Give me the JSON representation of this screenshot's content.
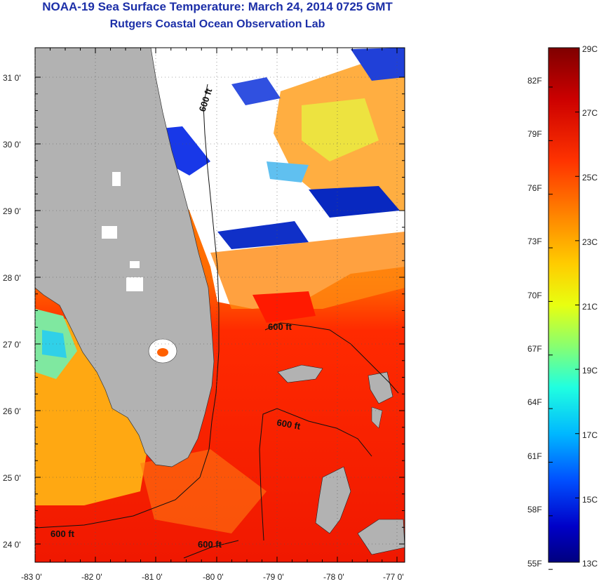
{
  "header": {
    "title": "NOAA-19 Sea Surface Temperature:  March 24, 2014 0725 GMT",
    "subtitle": "Rutgers Coastal Ocean Observation Lab"
  },
  "map": {
    "lon_ticks": [
      "-83 0'",
      "-82 0'",
      "-81 0'",
      "-80 0'",
      "-79 0'",
      "-78 0'",
      "-77 0'"
    ],
    "lat_ticks": [
      "31 0'",
      "30 0'",
      "29 0'",
      "28 0'",
      "27 0'",
      "26 0'",
      "25 0'",
      "24 0'"
    ],
    "contour_label": "600 ft",
    "land_color": "#b2b2b2",
    "cloud_color": "#ffffff"
  },
  "colorbar": {
    "celsius_labels": [
      "29C",
      "27C",
      "25C",
      "23C",
      "21C",
      "19C",
      "17C",
      "15C",
      "13C"
    ],
    "fahrenheit_labels": [
      "82F",
      "79F",
      "76F",
      "73F",
      "70F",
      "67F",
      "64F",
      "61F",
      "58F",
      "55F"
    ],
    "colors": [
      "#7f0000",
      "#cc0000",
      "#ff3300",
      "#ff8800",
      "#ffcc00",
      "#e8ff10",
      "#88ff70",
      "#20ffe0",
      "#00b8ff",
      "#0050ff",
      "#0000c8",
      "#00007f"
    ]
  }
}
